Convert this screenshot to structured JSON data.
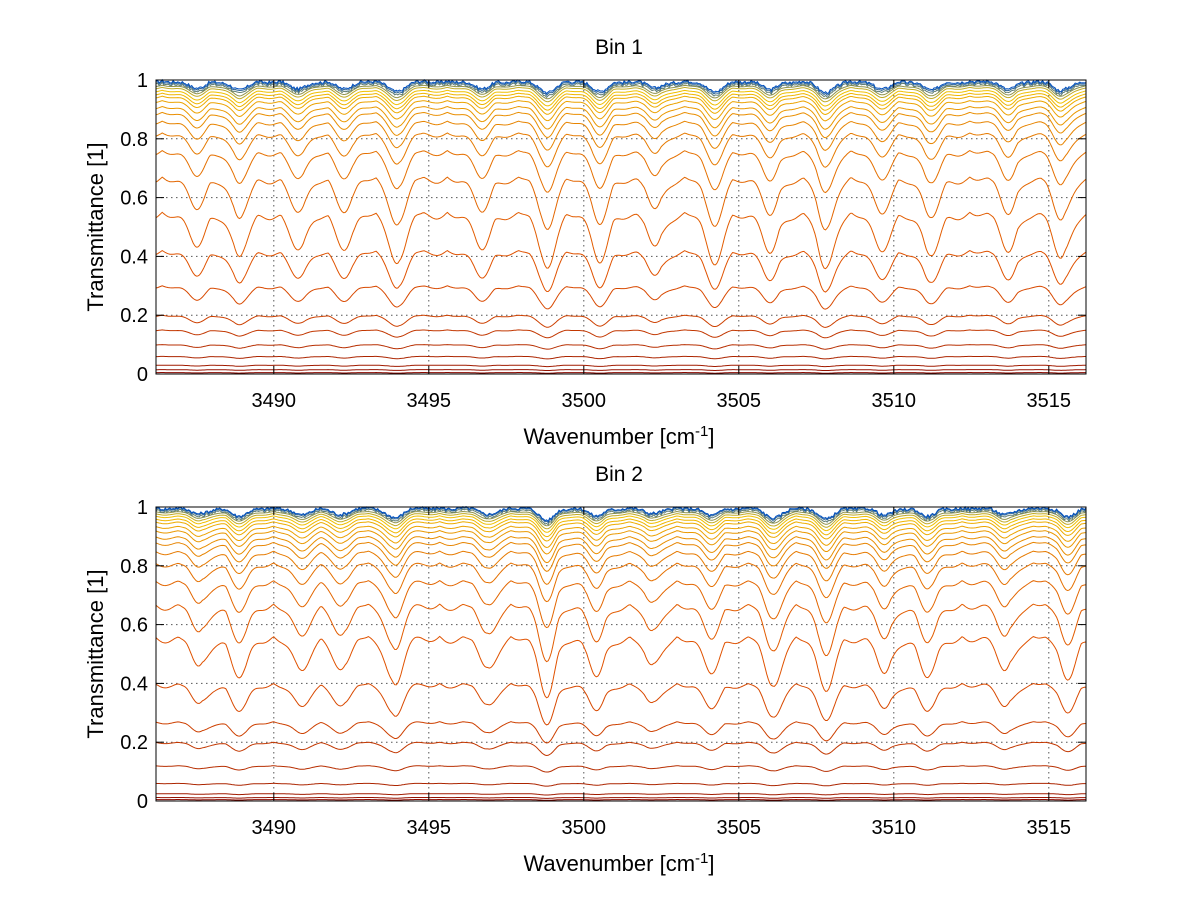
{
  "chart_data": [
    {
      "type": "line",
      "title": "Bin 1",
      "xlabel": "Wavenumber [cm",
      "xlabel_sup": "-1",
      "xlabel_suffix": "]",
      "ylabel": "Transmittance [1]",
      "xlim": [
        3486.2,
        3516.2
      ],
      "ylim": [
        0,
        1
      ],
      "xticks": [
        3490,
        3495,
        3500,
        3505,
        3510,
        3515
      ],
      "xtick_labels": [
        "3490",
        "3495",
        "3500",
        "3505",
        "3510",
        "3515"
      ],
      "yticks": [
        0,
        0.2,
        0.4,
        0.6,
        0.8,
        1
      ],
      "ytick_labels": [
        "0",
        "0.2",
        "0.4",
        "0.6",
        "0.8",
        "1"
      ],
      "grid": true,
      "series_count": 26,
      "series_baseline": [
        0.0,
        0.005,
        0.015,
        0.03,
        0.06,
        0.1,
        0.15,
        0.2,
        0.3,
        0.42,
        0.55,
        0.67,
        0.76,
        0.82,
        0.86,
        0.89,
        0.91,
        0.93,
        0.945,
        0.955,
        0.965,
        0.975,
        0.982,
        0.988,
        0.993,
        0.997
      ],
      "absorption_lines": [
        {
          "x": 3487.5,
          "depth": 0.5
        },
        {
          "x": 3488.9,
          "depth": 0.7
        },
        {
          "x": 3490.8,
          "depth": 0.6
        },
        {
          "x": 3492.3,
          "depth": 0.55
        },
        {
          "x": 3494.0,
          "depth": 0.8
        },
        {
          "x": 3496.7,
          "depth": 0.55
        },
        {
          "x": 3498.8,
          "depth": 0.85
        },
        {
          "x": 3500.5,
          "depth": 0.75
        },
        {
          "x": 3502.3,
          "depth": 0.5
        },
        {
          "x": 3504.2,
          "depth": 0.8
        },
        {
          "x": 3506.0,
          "depth": 0.6
        },
        {
          "x": 3507.8,
          "depth": 0.9
        },
        {
          "x": 3509.6,
          "depth": 0.6
        },
        {
          "x": 3511.2,
          "depth": 0.7
        },
        {
          "x": 3513.7,
          "depth": 0.55
        },
        {
          "x": 3515.4,
          "depth": 0.7
        }
      ],
      "colors": {
        "low": "#800000",
        "mid": "#e05000",
        "high": "#f0c000",
        "top": "#0050c0"
      }
    },
    {
      "type": "line",
      "title": "Bin 2",
      "xlabel": "Wavenumber [cm",
      "xlabel_sup": "-1",
      "xlabel_suffix": "]",
      "ylabel": "Transmittance [1]",
      "xlim": [
        3486.2,
        3516.2
      ],
      "ylim": [
        0,
        1
      ],
      "xticks": [
        3490,
        3495,
        3500,
        3505,
        3510,
        3515
      ],
      "xtick_labels": [
        "3490",
        "3495",
        "3500",
        "3505",
        "3510",
        "3515"
      ],
      "yticks": [
        0,
        0.2,
        0.4,
        0.6,
        0.8,
        1
      ],
      "ytick_labels": [
        "0",
        "0.2",
        "0.4",
        "0.6",
        "0.8",
        "1"
      ],
      "grid": true,
      "series_count": 26,
      "series_baseline": [
        0.0,
        0.005,
        0.012,
        0.025,
        0.06,
        0.12,
        0.2,
        0.27,
        0.4,
        0.56,
        0.67,
        0.75,
        0.81,
        0.85,
        0.88,
        0.9,
        0.92,
        0.935,
        0.95,
        0.96,
        0.97,
        0.978,
        0.985,
        0.99,
        0.995,
        0.998
      ],
      "absorption_lines": [
        {
          "x": 3487.6,
          "depth": 0.45
        },
        {
          "x": 3488.9,
          "depth": 0.65
        },
        {
          "x": 3490.9,
          "depth": 0.55
        },
        {
          "x": 3492.2,
          "depth": 0.5
        },
        {
          "x": 3493.9,
          "depth": 0.75
        },
        {
          "x": 3496.9,
          "depth": 0.5
        },
        {
          "x": 3498.8,
          "depth": 0.9
        },
        {
          "x": 3500.4,
          "depth": 0.6
        },
        {
          "x": 3502.2,
          "depth": 0.45
        },
        {
          "x": 3504.1,
          "depth": 0.55
        },
        {
          "x": 3506.1,
          "depth": 0.8
        },
        {
          "x": 3507.8,
          "depth": 0.85
        },
        {
          "x": 3509.7,
          "depth": 0.55
        },
        {
          "x": 3511.1,
          "depth": 0.65
        },
        {
          "x": 3513.6,
          "depth": 0.5
        },
        {
          "x": 3515.6,
          "depth": 0.6
        }
      ],
      "colors": {
        "low": "#800000",
        "mid": "#e05000",
        "high": "#f0c000",
        "top": "#0050c0"
      }
    }
  ]
}
